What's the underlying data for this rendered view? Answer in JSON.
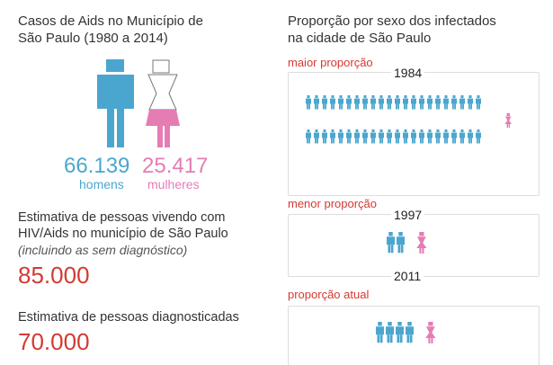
{
  "left": {
    "title_line1": "Casos de Aids no Município de",
    "title_line2": "São Paulo (1980 a 2014)",
    "men": {
      "value": "66.139",
      "label": "homens",
      "color": "#4ba6cf",
      "icon": "male-figure-icon"
    },
    "women": {
      "value": "25.417",
      "label": "mulheres",
      "color": "#e57cb4",
      "icon": "female-figure-icon"
    },
    "estimate_living": {
      "line1": "Estimativa de pessoas vivendo com",
      "line2": "HIV/Aids no município de São Paulo",
      "note": "(incluindo as sem diagnóstico)",
      "value": "85.000"
    },
    "estimate_diagnosed": {
      "line1": "Estimativa de pessoas diagnosticadas",
      "value": "70.000"
    }
  },
  "right": {
    "title_line1": "Proporção por sexo dos infectados",
    "title_line2": "na cidade de São Paulo",
    "sections": [
      {
        "label": "maior proporção",
        "year": "1984",
        "men": 44,
        "women": 1
      },
      {
        "label": "menor proporção",
        "year": "1997",
        "men": 2,
        "women": 1
      },
      {
        "label": "proporção atual",
        "year": "2011",
        "men": 4,
        "women": 1
      }
    ]
  },
  "colors": {
    "male": "#4ba6cf",
    "female": "#e57cb4",
    "highlight": "#d43a32",
    "border": "#dddddd"
  }
}
